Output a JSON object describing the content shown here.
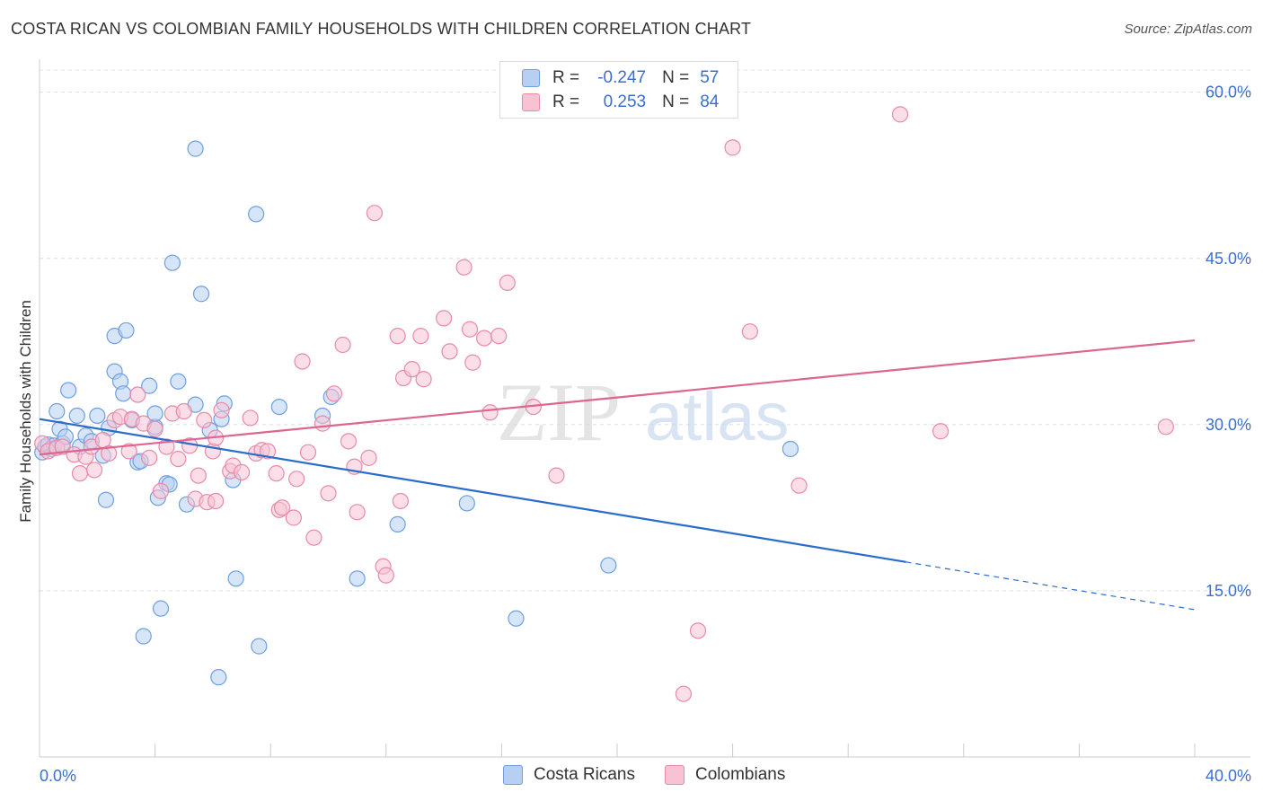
{
  "title": "COSTA RICAN VS COLOMBIAN FAMILY HOUSEHOLDS WITH CHILDREN CORRELATION CHART",
  "source": "Source: ZipAtlas.com",
  "watermark": {
    "zip": "ZIP",
    "atlas": "atlas"
  },
  "legend": {
    "r_label": "R =",
    "n_label": "N =",
    "costa": {
      "r": "-0.247",
      "n": "57"
    },
    "colombian": {
      "r": "0.253",
      "n": "84"
    }
  },
  "chart_data": {
    "type": "scatter",
    "xlabel": "",
    "ylabel": "Family Households with Children",
    "xlim": [
      0,
      40
    ],
    "ylim": [
      0,
      62
    ],
    "x_tick_labels": {
      "min": "0.0%",
      "max": "40.0%"
    },
    "y_ticks": [
      {
        "value": 15,
        "label": "15.0%"
      },
      {
        "value": 30,
        "label": "30.0%"
      },
      {
        "value": 45,
        "label": "45.0%"
      },
      {
        "value": 60,
        "label": "60.0%"
      }
    ],
    "grid": true,
    "series": [
      {
        "name": "Costa Ricans",
        "color": "#6f9fe0",
        "fill": "#b7cff3",
        "line_color": "#2a6ccc",
        "trend": {
          "x0": 0,
          "y0": 30.5,
          "x1": 30,
          "y1": 17.6,
          "dash_to_x": 40,
          "dash_to_y": 13.3
        },
        "points": [
          [
            0.1,
            27.5
          ],
          [
            0.2,
            28
          ],
          [
            0.3,
            28.2
          ],
          [
            0.4,
            27.8
          ],
          [
            0.5,
            28.1
          ],
          [
            0.6,
            31.2
          ],
          [
            0.7,
            29.6
          ],
          [
            0.8,
            28.3
          ],
          [
            0.9,
            28.9
          ],
          [
            1.0,
            33.1
          ],
          [
            1.3,
            30.8
          ],
          [
            1.4,
            28.0
          ],
          [
            1.6,
            29.0
          ],
          [
            1.8,
            28.5
          ],
          [
            2.0,
            30.8
          ],
          [
            2.2,
            27.2
          ],
          [
            2.3,
            23.2
          ],
          [
            2.4,
            29.7
          ],
          [
            2.6,
            38.0
          ],
          [
            2.6,
            34.8
          ],
          [
            2.8,
            33.9
          ],
          [
            2.9,
            32.8
          ],
          [
            3.0,
            38.5
          ],
          [
            3.2,
            30.4
          ],
          [
            3.4,
            26.6
          ],
          [
            3.5,
            26.7
          ],
          [
            3.6,
            10.9
          ],
          [
            3.8,
            33.5
          ],
          [
            4.0,
            29.8
          ],
          [
            4.0,
            31.0
          ],
          [
            4.1,
            23.4
          ],
          [
            4.2,
            13.4
          ],
          [
            4.4,
            24.7
          ],
          [
            4.5,
            24.6
          ],
          [
            4.6,
            44.6
          ],
          [
            4.8,
            33.9
          ],
          [
            5.1,
            22.8
          ],
          [
            5.4,
            31.8
          ],
          [
            5.4,
            54.9
          ],
          [
            5.6,
            41.8
          ],
          [
            5.9,
            29.5
          ],
          [
            6.2,
            7.2
          ],
          [
            6.3,
            30.5
          ],
          [
            6.4,
            31.9
          ],
          [
            6.7,
            25.0
          ],
          [
            6.8,
            16.1
          ],
          [
            7.5,
            49.0
          ],
          [
            7.6,
            10.0
          ],
          [
            8.3,
            31.6
          ],
          [
            9.8,
            30.8
          ],
          [
            10.1,
            32.5
          ],
          [
            11.0,
            16.1
          ],
          [
            12.4,
            21.0
          ],
          [
            14.8,
            22.9
          ],
          [
            16.5,
            12.5
          ],
          [
            19.7,
            17.3
          ],
          [
            26.0,
            27.8
          ]
        ]
      },
      {
        "name": "Colombians",
        "color": "#e88aa8",
        "fill": "#f7c3d3",
        "line_color": "#dd6690",
        "trend": {
          "x0": 0,
          "y0": 27.3,
          "x1": 40,
          "y1": 37.6
        },
        "points": [
          [
            0.1,
            28.3
          ],
          [
            0.3,
            27.6
          ],
          [
            0.6,
            27.9
          ],
          [
            0.8,
            28.0
          ],
          [
            1.2,
            27.3
          ],
          [
            1.4,
            25.6
          ],
          [
            1.6,
            27.1
          ],
          [
            1.8,
            28.0
          ],
          [
            1.9,
            25.9
          ],
          [
            2.2,
            28.6
          ],
          [
            2.4,
            27.4
          ],
          [
            2.6,
            30.4
          ],
          [
            2.8,
            30.7
          ],
          [
            3.1,
            27.6
          ],
          [
            3.2,
            30.5
          ],
          [
            3.4,
            32.7
          ],
          [
            3.6,
            30.1
          ],
          [
            3.8,
            27.0
          ],
          [
            4.0,
            29.6
          ],
          [
            4.2,
            24.0
          ],
          [
            4.4,
            28.0
          ],
          [
            4.6,
            31.0
          ],
          [
            4.8,
            26.9
          ],
          [
            5.0,
            31.2
          ],
          [
            5.2,
            28.1
          ],
          [
            5.4,
            23.3
          ],
          [
            5.5,
            25.4
          ],
          [
            5.7,
            30.4
          ],
          [
            5.8,
            23.0
          ],
          [
            6.0,
            27.6
          ],
          [
            6.1,
            28.8
          ],
          [
            6.3,
            31.3
          ],
          [
            6.6,
            25.8
          ],
          [
            6.7,
            26.3
          ],
          [
            7.0,
            25.7
          ],
          [
            7.3,
            30.6
          ],
          [
            7.5,
            27.4
          ],
          [
            7.7,
            27.7
          ],
          [
            7.9,
            27.6
          ],
          [
            8.2,
            25.6
          ],
          [
            8.3,
            22.3
          ],
          [
            8.4,
            22.5
          ],
          [
            8.9,
            25.1
          ],
          [
            9.1,
            35.7
          ],
          [
            9.3,
            27.5
          ],
          [
            9.5,
            19.8
          ],
          [
            9.8,
            30.1
          ],
          [
            10.0,
            23.8
          ],
          [
            10.2,
            32.8
          ],
          [
            10.5,
            37.2
          ],
          [
            10.7,
            28.5
          ],
          [
            10.9,
            26.2
          ],
          [
            11.0,
            22.1
          ],
          [
            11.4,
            27.0
          ],
          [
            11.6,
            49.1
          ],
          [
            11.9,
            17.2
          ],
          [
            12.0,
            16.4
          ],
          [
            12.4,
            38.0
          ],
          [
            12.5,
            23.1
          ],
          [
            12.6,
            34.2
          ],
          [
            12.9,
            35.0
          ],
          [
            13.2,
            38.0
          ],
          [
            13.3,
            34.1
          ],
          [
            14.0,
            39.6
          ],
          [
            14.2,
            36.6
          ],
          [
            14.7,
            44.2
          ],
          [
            14.9,
            38.6
          ],
          [
            15.0,
            35.6
          ],
          [
            15.4,
            37.8
          ],
          [
            15.6,
            31.1
          ],
          [
            15.9,
            38.0
          ],
          [
            16.2,
            42.8
          ],
          [
            17.1,
            31.6
          ],
          [
            17.9,
            25.4
          ],
          [
            22.3,
            5.7
          ],
          [
            22.8,
            11.4
          ],
          [
            24.0,
            55.0
          ],
          [
            24.6,
            38.4
          ],
          [
            26.3,
            24.5
          ],
          [
            29.8,
            58.0
          ],
          [
            31.2,
            29.4
          ],
          [
            39.0,
            29.8
          ],
          [
            8.8,
            21.6
          ],
          [
            6.1,
            23.1
          ]
        ]
      }
    ]
  }
}
